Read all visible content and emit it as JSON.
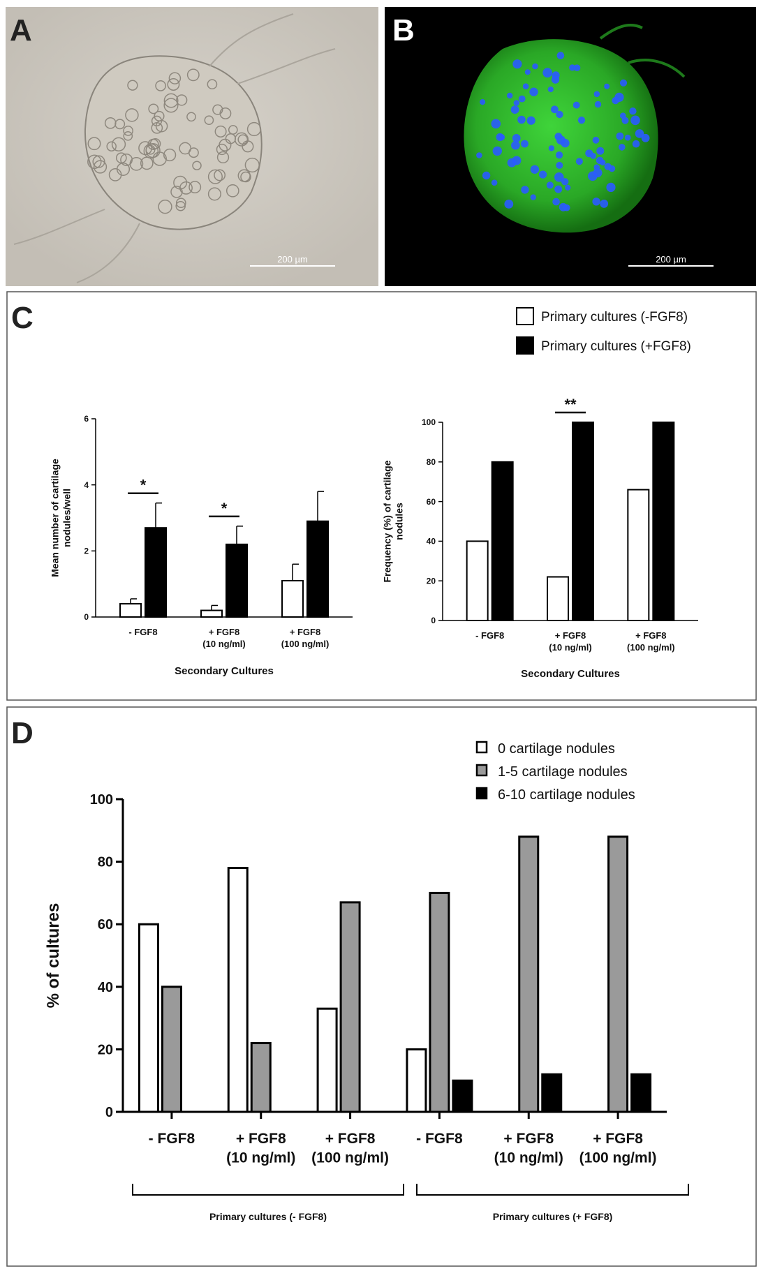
{
  "panels": {
    "a": {
      "letter": "A",
      "scale_bar": "200 µm"
    },
    "b": {
      "letter": "B",
      "scale_bar": "200 µm"
    },
    "c": {
      "letter": "C"
    },
    "d": {
      "letter": "D"
    }
  },
  "colors": {
    "brightfield_bg": "#c9c4bb",
    "fluor_bg": "#000000",
    "fluor_green": "#2fbf2a",
    "nuclei_blue": "#2a5bff",
    "bar_black": "#000000",
    "bar_white": "#ffffff",
    "bar_gray": "#9a9a9a"
  },
  "legend_c": {
    "items": [
      {
        "label": "Primary cultures (-FGF8)",
        "fill": "#ffffff"
      },
      {
        "label": "Primary cultures (+FGF8)",
        "fill": "#000000"
      }
    ]
  },
  "chart_data": [
    {
      "id": "c-left",
      "type": "bar",
      "title": "",
      "xlabel": "Secondary Cultures",
      "ylabel": "Mean number of cartilage nodules/well",
      "ylim": [
        0,
        6
      ],
      "yticks": [
        "0",
        "2",
        "4",
        "6"
      ],
      "categories": [
        "- FGF8",
        "+ FGF8 (10 ng/ml)",
        "+ FGF8 (100 ng/ml)"
      ],
      "category_lines": [
        [
          "- FGF8"
        ],
        [
          "+ FGF8",
          "(10 ng/ml)"
        ],
        [
          "+ FGF8",
          "(100 ng/ml)"
        ]
      ],
      "series": [
        {
          "name": "Primary cultures (-FGF8)",
          "values": [
            0.4,
            0.2,
            1.1
          ],
          "errors": [
            0.15,
            0.15,
            0.5
          ],
          "fill": "#ffffff"
        },
        {
          "name": "Primary cultures (+FGF8)",
          "values": [
            2.7,
            2.2,
            2.9
          ],
          "errors": [
            0.75,
            0.55,
            0.9
          ],
          "fill": "#000000"
        }
      ],
      "significance": [
        {
          "category_index": 0,
          "label": "*"
        },
        {
          "category_index": 1,
          "label": "*"
        }
      ]
    },
    {
      "id": "c-right",
      "type": "bar",
      "title": "",
      "xlabel": "Secondary Cultures",
      "ylabel": "Frequency (%) of cartilage nodules",
      "ylim": [
        0,
        100
      ],
      "yticks": [
        "0",
        "20",
        "40",
        "60",
        "80",
        "100"
      ],
      "categories": [
        "- FGF8",
        "+ FGF8 (10 ng/ml)",
        "+ FGF8 (100 ng/ml)"
      ],
      "category_lines": [
        [
          "- FGF8"
        ],
        [
          "+ FGF8",
          "(10 ng/ml)"
        ],
        [
          "+ FGF8",
          "(100 ng/ml)"
        ]
      ],
      "series": [
        {
          "name": "Primary cultures (-FGF8)",
          "values": [
            40,
            22,
            66
          ],
          "fill": "#ffffff"
        },
        {
          "name": "Primary cultures (+FGF8)",
          "values": [
            80,
            100,
            100
          ],
          "fill": "#000000"
        }
      ],
      "significance": [
        {
          "category_index": 1,
          "label": "**"
        }
      ]
    },
    {
      "id": "d",
      "type": "bar",
      "title": "",
      "xlabel": "",
      "ylabel": "% of cultures",
      "ylim": [
        0,
        100
      ],
      "yticks": [
        "0",
        "20",
        "40",
        "60",
        "80",
        "100"
      ],
      "categories": [
        "- FGF8",
        "+ FGF8 (10 ng/ml)",
        "+ FGF8 (100 ng/ml)",
        "- FGF8",
        "+ FGF8 (10 ng/ml)",
        "+ FGF8 (100 ng/ml)"
      ],
      "category_lines": [
        [
          "- FGF8"
        ],
        [
          "+ FGF8",
          "(10 ng/ml)"
        ],
        [
          "+ FGF8",
          "(100 ng/ml)"
        ],
        [
          "- FGF8"
        ],
        [
          "+ FGF8",
          "(10 ng/ml)"
        ],
        [
          "+ FGF8",
          "(100 ng/ml)"
        ]
      ],
      "groups": [
        "Primary cultures (- FGF8)",
        "Primary cultures (+ FGF8)"
      ],
      "series": [
        {
          "name": "0 cartilage nodules",
          "values": [
            60,
            78,
            33,
            20,
            0,
            0
          ],
          "fill": "#ffffff"
        },
        {
          "name": "1-5 cartilage nodules",
          "values": [
            40,
            22,
            67,
            70,
            88,
            88
          ],
          "fill": "#9a9a9a"
        },
        {
          "name": "6-10 cartilage nodules",
          "values": [
            0,
            0,
            0,
            10,
            12,
            12
          ],
          "fill": "#000000"
        }
      ]
    }
  ]
}
